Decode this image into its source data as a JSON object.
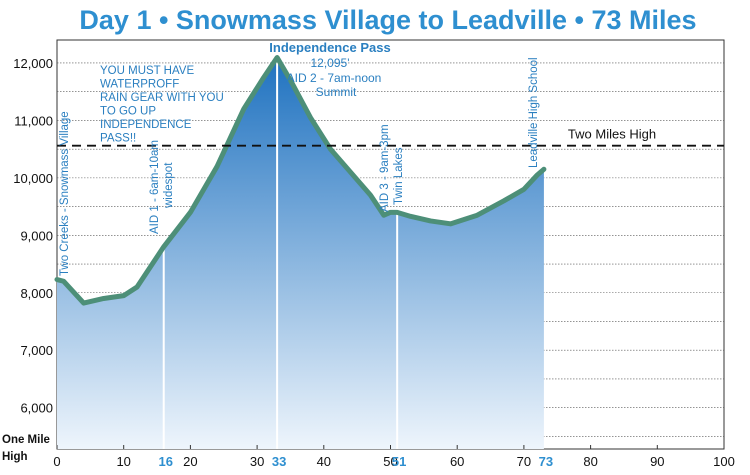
{
  "chart_data": {
    "type": "area",
    "title": "Day 1 • Snowmass Village to Leadville • 73 Miles",
    "xlabel": "",
    "ylabel": "",
    "xlim": [
      0,
      100
    ],
    "ylim": [
      5280,
      12400
    ],
    "x_ticks": [
      0,
      10,
      20,
      30,
      40,
      50,
      60,
      70,
      80,
      90,
      100
    ],
    "y_ticks": [
      6000,
      7000,
      8000,
      9000,
      10000,
      11000,
      12000
    ],
    "y_tick_labels": [
      "6,000",
      "7,000",
      "8,000",
      "9,000",
      "10,000",
      "11,000",
      "12,000"
    ],
    "y_base_label_line1": "One Mile",
    "y_base_label_line2": "High",
    "grid": true,
    "series": [
      {
        "x": [
          0,
          1,
          4,
          7,
          10,
          12,
          16,
          20,
          24,
          28,
          31,
          33,
          35,
          38,
          41,
          44,
          47,
          49,
          50,
          51,
          53,
          56,
          59,
          63,
          67,
          70,
          72,
          73
        ],
        "y": [
          8230,
          8200,
          7820,
          7900,
          7950,
          8100,
          8800,
          9400,
          10200,
          11200,
          11750,
          12095,
          11700,
          11050,
          10500,
          10100,
          9700,
          9350,
          9400,
          9400,
          9330,
          9250,
          9200,
          9350,
          9600,
          9800,
          10050,
          10150
        ]
      }
    ],
    "reference_line": {
      "y": 10560,
      "label": "Two Miles High"
    },
    "markers": [
      {
        "x": 16,
        "label": "16",
        "caption_line1": "AID 1 - 6am-10am",
        "caption_line2": "widespot"
      },
      {
        "x": 33,
        "label": "33",
        "caption_line1": "Independence Pass",
        "caption_line2": "12,095'",
        "caption_line3": "AID 2 - 7am-noon",
        "caption_line4": "Summit"
      },
      {
        "x": 51,
        "label": "51",
        "caption_line1": "AID 3 - 9am-3pm",
        "caption_line2": "Twin Lakes"
      },
      {
        "x": 73,
        "label": "73",
        "caption_line1": "Leadville High School"
      }
    ],
    "start_label": "Two Creeks - Snowmass Village",
    "warning_lines": [
      "YOU MUST HAVE",
      "WATERPROFF",
      "RAIN GEAR WITH YOU",
      "TO GO UP",
      "INDEPENDENCE",
      "PASS!!"
    ],
    "colors": {
      "title": "#2e8fd0",
      "fill_top": "#1f72c0",
      "fill_bottom": "#eef5fc",
      "outline": "#4d8f78",
      "accent_text": "#2e8fd0",
      "grid": "#444444"
    }
  }
}
